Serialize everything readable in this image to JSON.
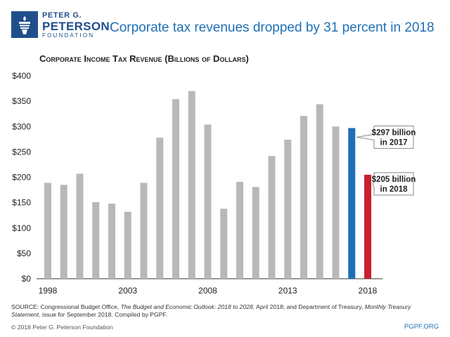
{
  "logo": {
    "line1": "PETER G.",
    "line2": "PETERSON",
    "line3": "FOUNDATION"
  },
  "title": "Corporate tax revenues dropped by 31 percent in 2018",
  "colors": {
    "brand": "#1f4f8b",
    "title": "#1f6fb5",
    "bars": "#b8b8b8",
    "highlight_2017": "#1f6fb5",
    "highlight_2018": "#c8202f"
  },
  "chart_data": {
    "type": "bar",
    "title": "Corporate Income Tax Revenue (Billions of Dollars)",
    "ylim": [
      0,
      400
    ],
    "y_ticks": [
      "$0",
      "$50",
      "$100",
      "$150",
      "$200",
      "$250",
      "$300",
      "$350",
      "$400"
    ],
    "x_tick_labels": [
      "1998",
      "2003",
      "2008",
      "2013",
      "2018"
    ],
    "grid": false,
    "categories": [
      1998,
      1999,
      2000,
      2001,
      2002,
      2003,
      2004,
      2005,
      2006,
      2007,
      2008,
      2009,
      2010,
      2011,
      2012,
      2013,
      2014,
      2015,
      2016,
      2017,
      2018
    ],
    "values": [
      189,
      185,
      207,
      151,
      148,
      132,
      189,
      278,
      354,
      370,
      304,
      138,
      191,
      181,
      242,
      274,
      321,
      344,
      300,
      297,
      205
    ],
    "annotations": [
      {
        "year": 2017,
        "label_line1": "$297 billion",
        "label_line2": "in 2017"
      },
      {
        "year": 2018,
        "label_line1": "$205 billion",
        "label_line2": "in 2018"
      }
    ]
  },
  "source": {
    "prefix": "SOURCE: Congressional Budget Office, ",
    "italic1": "The Budget and Economic Outlook: 2018 to 2028,",
    "middle": " April 2018; and Department of Treasury, ",
    "italic2": "Monthly Treasury Statement,",
    "suffix": " issue for September 2018. Compiled by PGPF."
  },
  "footer": {
    "copyright": "© 2018 Peter G. Peterson Foundation",
    "site": "PGPF.ORG"
  }
}
